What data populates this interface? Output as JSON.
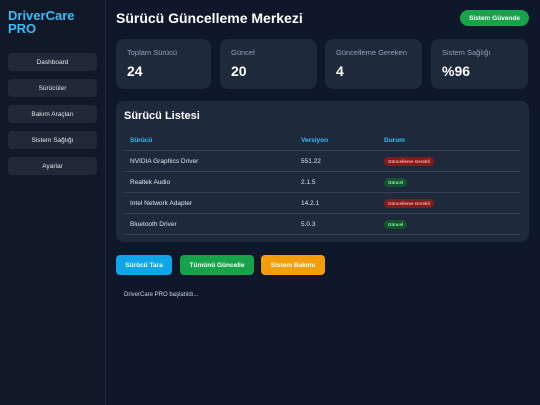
{
  "sidebar": {
    "brand": "DriverCare PRO",
    "nav": [
      "Dashboard",
      "Sürücüler",
      "Bakım Araçları",
      "Sistem Sağlığı",
      "Ayarlar"
    ]
  },
  "header": {
    "title": "Sürücü Güncelleme Merkezi",
    "badge": "Sistem Güvende"
  },
  "stats": [
    {
      "label": "Toplam Sürücü",
      "value": 24
    },
    {
      "label": "Güncel",
      "value": 20
    },
    {
      "label": "Güncelleme Gereken",
      "value": 4
    },
    {
      "label": "Sistem Sağlığı",
      "value": "%96"
    }
  ],
  "table": {
    "title": "Sürücü Listesi",
    "columns": [
      "Sürücü",
      "Versiyon",
      "Durum"
    ],
    "rows": [
      [
        "NVIDIA Graphics Driver",
        "551.22",
        "Güncelleme Gerekli"
      ],
      [
        "Realtek Audio",
        "2.1.5",
        "Güncel"
      ],
      [
        "Intel Network Adapter",
        "14.2.1",
        "Güncelleme Gerekli"
      ],
      [
        "Bluetooth Driver",
        "5.0.3",
        "Güncel"
      ]
    ]
  },
  "actions": [
    "Sürücü Tara",
    "Tümünü Güncelle",
    "Sistem Bakımı"
  ],
  "log": "DriverCare PRO başlatıldı..."
}
